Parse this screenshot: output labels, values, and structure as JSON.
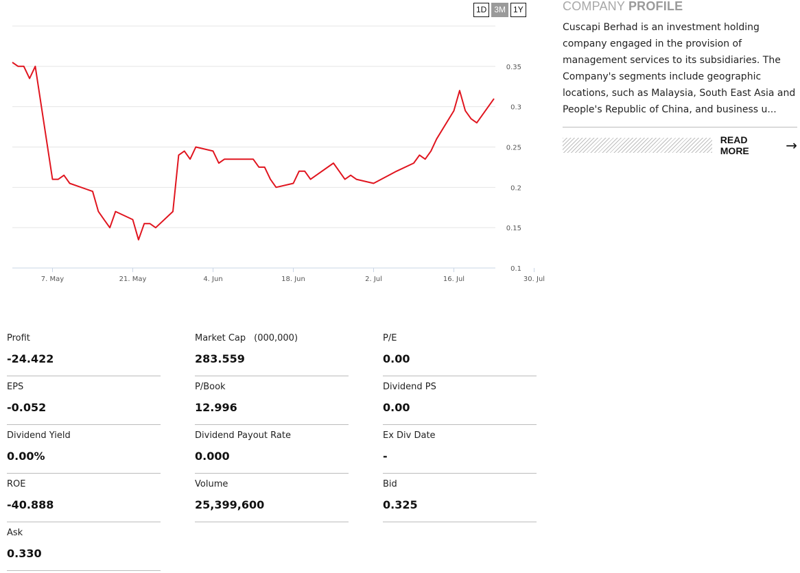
{
  "range_buttons": [
    {
      "label": "1D",
      "active": false
    },
    {
      "label": "3M",
      "active": true
    },
    {
      "label": "1Y",
      "active": false
    }
  ],
  "chart_data": {
    "type": "line",
    "series": [
      {
        "color": "#e0141e",
        "points": [
          [
            "2018-04-30",
            0.355
          ],
          [
            "2018-05-01",
            0.35
          ],
          [
            "2018-05-02",
            0.35
          ],
          [
            "2018-05-03",
            0.335
          ],
          [
            "2018-05-04",
            0.35
          ],
          [
            "2018-05-07",
            0.21
          ],
          [
            "2018-05-08",
            0.21
          ],
          [
            "2018-05-09",
            0.215
          ],
          [
            "2018-05-10",
            0.205
          ],
          [
            "2018-05-14",
            0.195
          ],
          [
            "2018-05-15",
            0.17
          ],
          [
            "2018-05-16",
            0.16
          ],
          [
            "2018-05-17",
            0.15
          ],
          [
            "2018-05-18",
            0.17
          ],
          [
            "2018-05-21",
            0.16
          ],
          [
            "2018-05-22",
            0.135
          ],
          [
            "2018-05-23",
            0.155
          ],
          [
            "2018-05-24",
            0.155
          ],
          [
            "2018-05-25",
            0.15
          ],
          [
            "2018-05-28",
            0.17
          ],
          [
            "2018-05-29",
            0.24
          ],
          [
            "2018-05-30",
            0.245
          ],
          [
            "2018-05-31",
            0.235
          ],
          [
            "2018-06-01",
            0.25
          ],
          [
            "2018-06-04",
            0.245
          ],
          [
            "2018-06-05",
            0.23
          ],
          [
            "2018-06-06",
            0.235
          ],
          [
            "2018-06-07",
            0.235
          ],
          [
            "2018-06-08",
            0.235
          ],
          [
            "2018-06-11",
            0.235
          ],
          [
            "2018-06-12",
            0.225
          ],
          [
            "2018-06-13",
            0.225
          ],
          [
            "2018-06-14",
            0.21
          ],
          [
            "2018-06-15",
            0.2
          ],
          [
            "2018-06-18",
            0.205
          ],
          [
            "2018-06-19",
            0.22
          ],
          [
            "2018-06-20",
            0.22
          ],
          [
            "2018-06-21",
            0.21
          ],
          [
            "2018-06-22",
            0.215
          ],
          [
            "2018-06-25",
            0.23
          ],
          [
            "2018-06-26",
            0.22
          ],
          [
            "2018-06-27",
            0.21
          ],
          [
            "2018-06-28",
            0.215
          ],
          [
            "2018-06-29",
            0.21
          ],
          [
            "2018-07-02",
            0.205
          ],
          [
            "2018-07-06",
            0.22
          ],
          [
            "2018-07-09",
            0.23
          ],
          [
            "2018-07-10",
            0.24
          ],
          [
            "2018-07-11",
            0.235
          ],
          [
            "2018-07-12",
            0.245
          ],
          [
            "2018-07-13",
            0.26
          ],
          [
            "2018-07-16",
            0.295
          ],
          [
            "2018-07-17",
            0.32
          ],
          [
            "2018-07-18",
            0.295
          ],
          [
            "2018-07-19",
            0.285
          ],
          [
            "2018-07-20",
            0.28
          ],
          [
            "2018-07-23",
            0.31
          ]
        ]
      }
    ],
    "x_ticks": [
      "7. May",
      "21. May",
      "4. Jun",
      "18. Jun",
      "2. Jul",
      "16. Jul",
      "30. Jul"
    ],
    "y_ticks": [
      "0.1",
      "0.15",
      "0.2",
      "0.25",
      "0.3",
      "0.35"
    ],
    "ylim": [
      0.1,
      0.4
    ],
    "grid": true
  },
  "profile": {
    "title_light": "COMPANY",
    "title_bold": "PROFILE",
    "text": "Cuscapi Berhad is an investment holding company engaged in the provision of management services to its subsidiaries. The Company's segments include geographic locations, such as Malaysia, South East Asia and People's Republic of China, and business u...",
    "read_more": "READ MORE",
    "arrow_icon": "arrow-right-icon"
  },
  "stats": [
    {
      "label": "Profit",
      "value": "-24.422"
    },
    {
      "label": "Market Cap",
      "extra": "(000,000)",
      "value": "283.559"
    },
    {
      "label": "P/E",
      "value": "0.00"
    },
    {
      "label": "EPS",
      "value": "-0.052"
    },
    {
      "label": "P/Book",
      "value": "12.996"
    },
    {
      "label": "Dividend PS",
      "value": "0.00"
    },
    {
      "label": "Dividend Yield",
      "value": "0.00%"
    },
    {
      "label": "Dividend Payout Rate",
      "value": "0.000"
    },
    {
      "label": "Ex Div Date",
      "value": "-"
    },
    {
      "label": "ROE",
      "value": "-40.888"
    },
    {
      "label": "Volume",
      "value": "25,399,600"
    },
    {
      "label": "Bid",
      "value": "0.325"
    },
    {
      "label": "Ask",
      "value": "0.330"
    }
  ]
}
